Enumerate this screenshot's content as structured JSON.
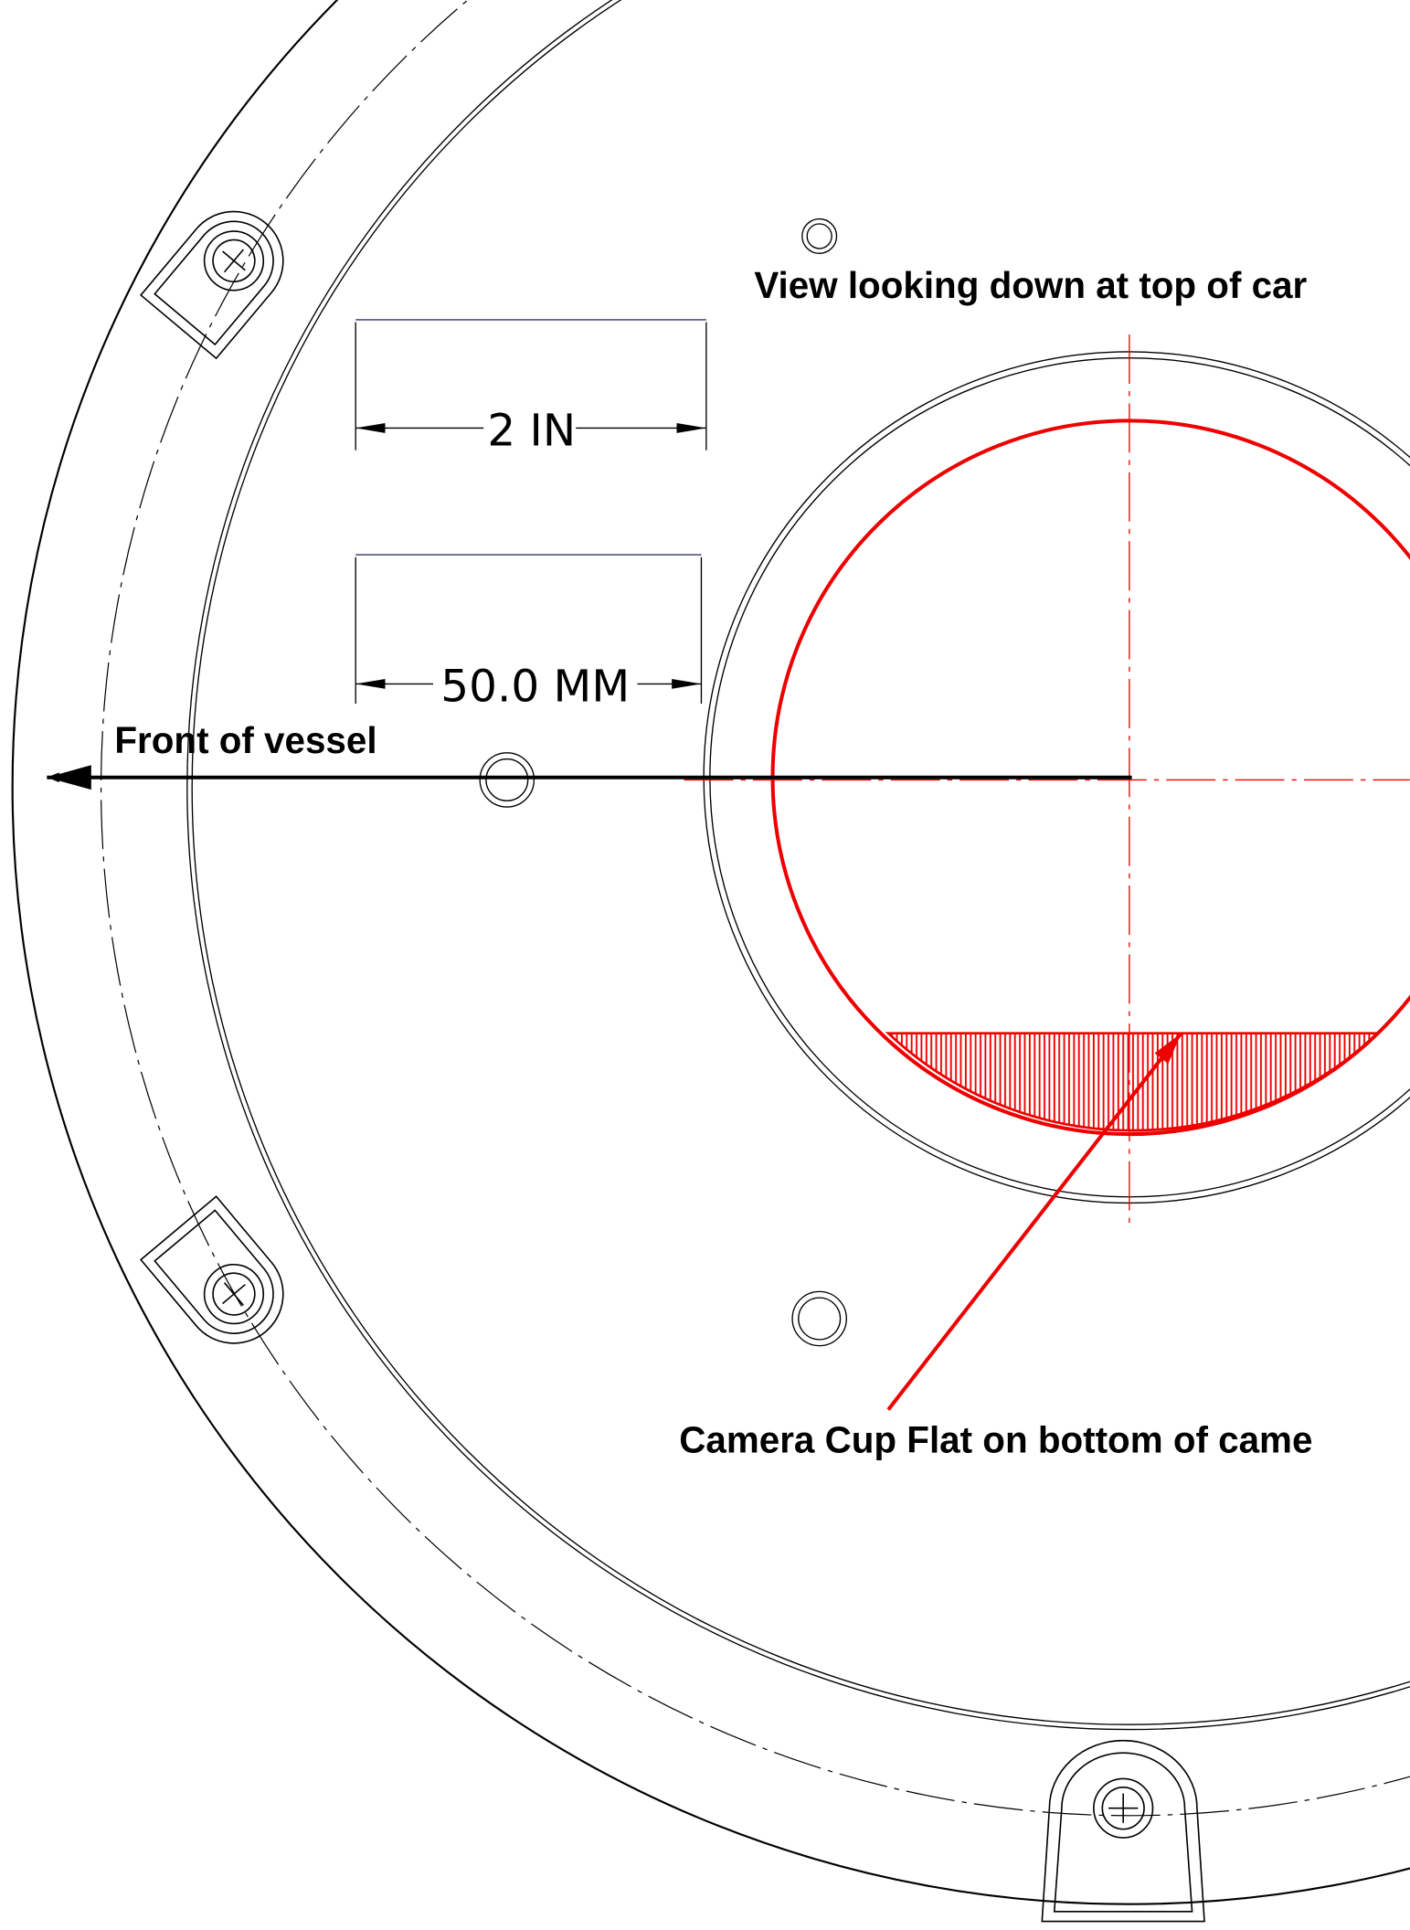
{
  "labels": {
    "view": "View looking down at top of car",
    "front": "Front of vessel",
    "flat": "Camera Cup Flat on bottom of came"
  },
  "dimensions": {
    "inch": "2 IN",
    "mm": "50.0 MM"
  }
}
